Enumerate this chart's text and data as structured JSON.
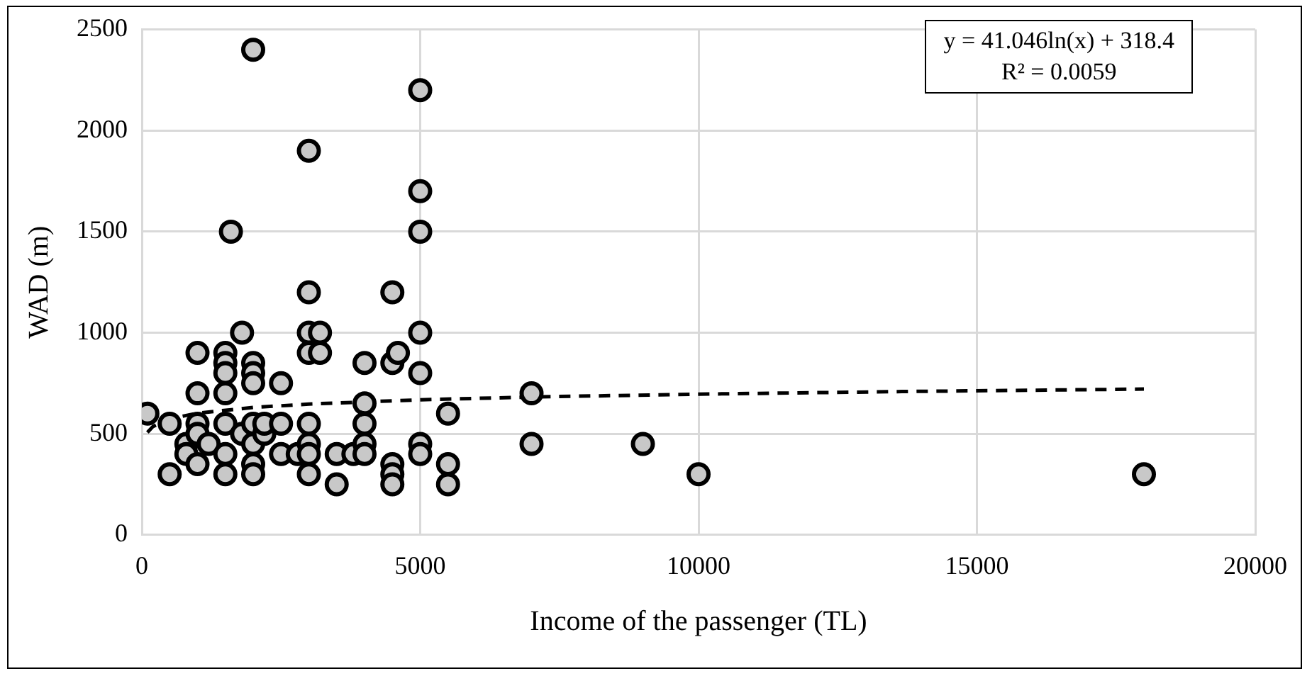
{
  "chart_data": {
    "type": "scatter",
    "xlabel": "Income of the passenger (TL)",
    "ylabel": "WAD (m)",
    "xlim": [
      0,
      20000
    ],
    "xticks": [
      0,
      5000,
      10000,
      15000,
      20000
    ],
    "ylim": [
      0,
      2500
    ],
    "yticks": [
      0,
      500,
      1000,
      1500,
      2000,
      2500
    ],
    "grid": true,
    "legend": false,
    "marker": "circle",
    "annotations": [
      "y = 41.046ln(x) + 318.4",
      "R² = 0.0059"
    ],
    "series": [
      {
        "color": "#000000",
        "x": [
          100,
          500,
          500,
          800,
          800,
          1000,
          1000,
          1000,
          1000,
          1000,
          1200,
          1500,
          1500,
          1500,
          1500,
          1500,
          1500,
          1500,
          1600,
          1800,
          1800,
          2000,
          2000,
          2000,
          2000,
          2000,
          2000,
          2000,
          2000,
          2200,
          2200,
          2500,
          2500,
          2500,
          2800,
          3000,
          3000,
          3000,
          3000,
          3000,
          3000,
          3000,
          3000,
          3200,
          3200,
          3500,
          3500,
          3800,
          4000,
          4000,
          4000,
          4000,
          4000,
          4500,
          4500,
          4500,
          4500,
          4500,
          4600,
          5000,
          5000,
          5000,
          5000,
          5000,
          5000,
          5000,
          5500,
          5500,
          5500,
          7000,
          7000,
          9000,
          10000,
          18000
        ],
        "values": [
          600,
          550,
          300,
          450,
          400,
          900,
          700,
          550,
          500,
          350,
          450,
          900,
          850,
          800,
          700,
          550,
          400,
          300,
          1500,
          1000,
          500,
          2400,
          850,
          800,
          750,
          550,
          450,
          350,
          300,
          500,
          550,
          750,
          550,
          400,
          400,
          1900,
          1200,
          1000,
          900,
          550,
          450,
          400,
          300,
          1000,
          900,
          400,
          250,
          400,
          850,
          650,
          550,
          450,
          400,
          1200,
          850,
          350,
          300,
          250,
          900,
          2200,
          1700,
          1500,
          1000,
          800,
          450,
          400,
          600,
          350,
          250,
          700,
          450,
          450,
          300,
          300
        ]
      },
      {
        "type": "line",
        "color": "#000000",
        "marker": "none",
        "line_style": "dashed",
        "x": [
          100,
          200,
          500,
          1000,
          2000,
          3000,
          5000,
          7000,
          10000,
          14000,
          18000
        ],
        "values": [
          507,
          536,
          574,
          602,
          630,
          647,
          668,
          682,
          696,
          710,
          721
        ]
      }
    ]
  }
}
